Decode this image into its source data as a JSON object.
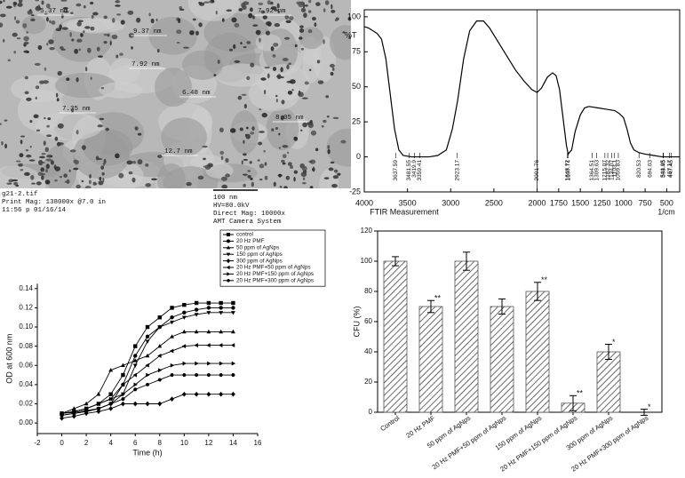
{
  "image": {
    "labels": [
      "5.37 nm",
      "7.92 nm",
      "9.37 nm",
      "7.92 nm",
      "6.48 nm",
      "7.35 nm",
      "8.05 nm",
      "12.7 nm"
    ],
    "caption_left": [
      "g21-2.tif",
      "Print Mag: 138000x @7.0 in",
      "11:56 p 01/16/14"
    ],
    "scale_bar": "100 nm",
    "caption_right": [
      "HV=80.0kV",
      "Direct Mag: 10000x",
      "AMT Camera System"
    ]
  },
  "chart_data": [
    {
      "type": "line",
      "y_label": "%T",
      "x_label": "FTIR Measurement",
      "x_unit": "1/cm",
      "color": "#000000",
      "x": [
        4000,
        3950,
        3900,
        3850,
        3800,
        3750,
        3700,
        3650,
        3600,
        3550,
        3450,
        3350,
        3250,
        3150,
        3050,
        2980,
        2920,
        2850,
        2780,
        2700,
        2620,
        2550,
        2450,
        2350,
        2250,
        2150,
        2060,
        2000,
        1950,
        1880,
        1820,
        1780,
        1740,
        1700,
        1660,
        1640,
        1600,
        1560,
        1500,
        1450,
        1400,
        1300,
        1200,
        1100,
        1050,
        1000,
        960,
        920,
        880,
        820,
        750,
        650,
        550,
        450,
        350
      ],
      "values": [
        93,
        92,
        90,
        88,
        84,
        70,
        45,
        20,
        5,
        1,
        0,
        0,
        0,
        1,
        5,
        20,
        40,
        70,
        90,
        97,
        97,
        92,
        82,
        72,
        62,
        54,
        48,
        46,
        49,
        57,
        60,
        58,
        48,
        28,
        8,
        2,
        5,
        18,
        30,
        35,
        36,
        35,
        34,
        33,
        31,
        28,
        20,
        10,
        5,
        3,
        2,
        1,
        0,
        0,
        0
      ],
      "peak_labels": [
        3637.59,
        3481.55,
        3419.9,
        3359.41,
        2923.17,
        2001.76,
        1648.72,
        1637.74,
        1364.51,
        1309.63,
        1215.07,
        1182.32,
        1134.07,
        1103.1,
        1059.83,
        820.53,
        694.03,
        541.95,
        538.45,
        467.17,
        447.45
      ],
      "xlim": [
        4000,
        350
      ],
      "xticks": [
        4000,
        3500,
        3000,
        2500,
        2000,
        1750,
        1500,
        1250,
        1000,
        750,
        500
      ],
      "ylim": [
        -25,
        105
      ],
      "yticks": [
        100,
        75,
        50,
        25,
        0,
        -25
      ]
    },
    {
      "type": "line",
      "x_label": "Time (h)",
      "y_label": "OD at 600 nm",
      "x": [
        0,
        1,
        2,
        3,
        4,
        5,
        6,
        7,
        8,
        9,
        10,
        11,
        12,
        13,
        14
      ],
      "series": [
        {
          "name": "control",
          "color": "#000000",
          "marker": "square",
          "values": [
            0.01,
            0.012,
            0.015,
            0.02,
            0.03,
            0.05,
            0.08,
            0.1,
            0.11,
            0.12,
            0.123,
            0.125,
            0.125,
            0.125,
            0.125
          ]
        },
        {
          "name": "20 Hz PMF",
          "color": "#000000",
          "marker": "circle",
          "values": [
            0.008,
            0.01,
            0.012,
            0.015,
            0.02,
            0.04,
            0.07,
            0.09,
            0.1,
            0.11,
            0.115,
            0.118,
            0.12,
            0.12,
            0.12
          ]
        },
        {
          "name": "50 ppm of AgNps",
          "color": "#000000",
          "marker": "triangle-up",
          "values": [
            0.01,
            0.015,
            0.02,
            0.03,
            0.055,
            0.06,
            0.065,
            0.07,
            0.08,
            0.09,
            0.095,
            0.095,
            0.095,
            0.095,
            0.095
          ]
        },
        {
          "name": "150 ppm of AgNps",
          "color": "#000000",
          "marker": "triangle-down",
          "values": [
            0.008,
            0.01,
            0.012,
            0.015,
            0.02,
            0.03,
            0.06,
            0.085,
            0.1,
            0.105,
            0.11,
            0.113,
            0.115,
            0.115,
            0.115
          ]
        },
        {
          "name": "300 ppm of AgNps",
          "color": "#000000",
          "marker": "diamond",
          "values": [
            0.005,
            0.007,
            0.01,
            0.012,
            0.015,
            0.02,
            0.02,
            0.02,
            0.02,
            0.025,
            0.03,
            0.03,
            0.03,
            0.03,
            0.03
          ]
        },
        {
          "name": "20 Hz PMF+50 ppm of AgNps",
          "color": "#000000",
          "marker": "triangle-left",
          "values": [
            0.01,
            0.012,
            0.015,
            0.02,
            0.025,
            0.04,
            0.05,
            0.06,
            0.07,
            0.075,
            0.08,
            0.081,
            0.081,
            0.081,
            0.081
          ]
        },
        {
          "name": "20 Hz PMF+150 ppm of AgNps",
          "color": "#000000",
          "marker": "triangle-right",
          "values": [
            0.01,
            0.012,
            0.015,
            0.02,
            0.025,
            0.03,
            0.04,
            0.05,
            0.055,
            0.06,
            0.062,
            0.062,
            0.062,
            0.062,
            0.062
          ]
        },
        {
          "name": "20 Hz PMF+300 ppm of AgNps",
          "color": "#000000",
          "marker": "hexagon",
          "values": [
            0.01,
            0.011,
            0.013,
            0.015,
            0.02,
            0.025,
            0.035,
            0.04,
            0.045,
            0.05,
            0.05,
            0.05,
            0.05,
            0.05,
            0.05
          ]
        }
      ],
      "xlim": [
        -2,
        16
      ],
      "xticks": [
        -2,
        0,
        2,
        4,
        6,
        8,
        10,
        12,
        14,
        16
      ],
      "ylim": [
        -0.011,
        0.145
      ],
      "yticks": [
        {
          "value": 0,
          "label": "0.00"
        },
        {
          "value": 0.02,
          "label": "0.02"
        },
        {
          "value": 0.04,
          "label": "0.04"
        },
        {
          "value": 0.06,
          "label": "0.06"
        },
        {
          "value": 0.08,
          "label": "0.08"
        },
        {
          "value": 0.1,
          "label": "0.10"
        },
        {
          "value": 0.12,
          "label": "0.12"
        },
        {
          "value": 0.14,
          "label": "0.14"
        }
      ],
      "legend": "top-right"
    },
    {
      "type": "bar",
      "y_label": "CFU (%)",
      "categories": [
        "Control",
        "20 Hz PMF",
        "50 ppm of AgNps",
        "20 Hz PMF+50 ppm of AgNps",
        "150 ppm of AgNps",
        "20 Hz PMF+150 ppm of AgNps",
        "300 ppm of AgNps",
        "20 Hz PMF+300 ppm of AgNps"
      ],
      "values": [
        100,
        70,
        100,
        70,
        80,
        6,
        40,
        0
      ],
      "errors": [
        3,
        4,
        6,
        5,
        6,
        5,
        5,
        2
      ],
      "significance": [
        null,
        "**",
        null,
        null,
        "**",
        "**",
        "*",
        "*"
      ],
      "color": "#555555",
      "ylim": [
        0,
        120
      ],
      "yticks": [
        0,
        20,
        40,
        60,
        80,
        100,
        120
      ]
    }
  ]
}
